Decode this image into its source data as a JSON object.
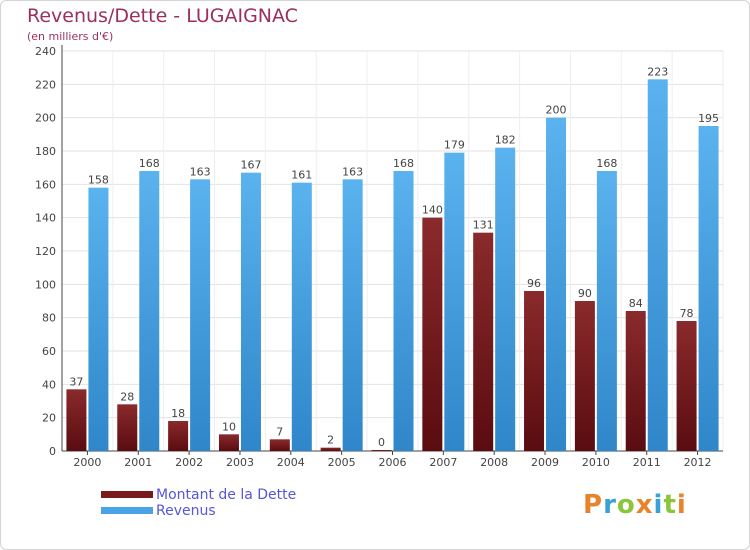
{
  "chart_data": {
    "type": "bar",
    "title": "Revenus/Dette - LUGAIGNAC",
    "subtitle": "(en milliers d'€)",
    "categories": [
      "2000",
      "2001",
      "2002",
      "2003",
      "2004",
      "2005",
      "2006",
      "2007",
      "2008",
      "2009",
      "2010",
      "2011",
      "2012"
    ],
    "series": [
      {
        "name": "Montant de la Dette",
        "color": "#7a1a1c",
        "values": [
          37,
          28,
          18,
          10,
          7,
          2,
          0,
          140,
          131,
          96,
          90,
          84,
          78
        ]
      },
      {
        "name": "Revenus",
        "color": "#4aa3e6",
        "values": [
          158,
          168,
          163,
          167,
          161,
          163,
          168,
          179,
          182,
          200,
          168,
          223,
          195
        ]
      }
    ],
    "ylim": [
      0,
      240
    ],
    "yticks": [
      0,
      20,
      40,
      60,
      80,
      100,
      120,
      140,
      160,
      180,
      200,
      220,
      240
    ],
    "grid": true,
    "legend_position": "bottom-left"
  },
  "logo": {
    "letters": [
      {
        "ch": "P",
        "color": "#e8832a"
      },
      {
        "ch": "r",
        "color": "#3aa0d8"
      },
      {
        "ch": "o",
        "color": "#8cc43c"
      },
      {
        "ch": "x",
        "color": "#e8832a"
      },
      {
        "ch": "i",
        "color": "#3aa0d8"
      },
      {
        "ch": "t",
        "color": "#8cc43c"
      },
      {
        "ch": "i",
        "color": "#e8832a"
      }
    ]
  }
}
